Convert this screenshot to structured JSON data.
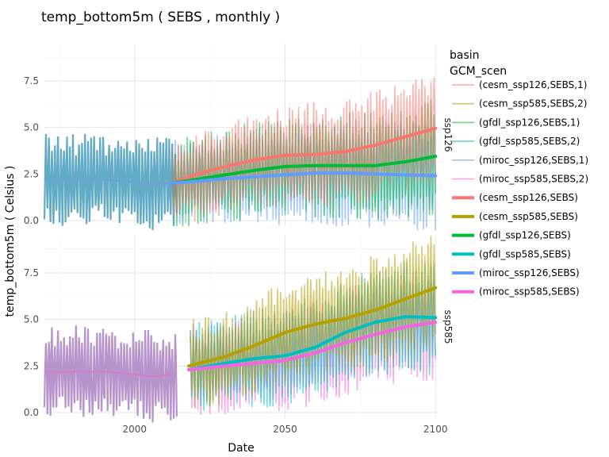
{
  "chart_data": {
    "type": "line",
    "title": "temp_bottom5m ( SEBS , monthly )",
    "xlabel": "Date",
    "ylabel": "temp_bottom5m ( Celsius )",
    "xlim": [
      1970,
      2101
    ],
    "ylim": [
      -0.3,
      9.5
    ],
    "x_ticks": [
      2000,
      2050,
      2100
    ],
    "y_ticks": [
      0.0,
      2.5,
      5.0,
      7.5
    ],
    "y_tick_labels": [
      "0.0",
      "2.5",
      "5.0",
      "7.5"
    ],
    "grid": true,
    "facets": [
      {
        "strip_label": "ssp126",
        "smooth_series": [
          {
            "name": "(cesm_ssp126,SEBS)",
            "color": "#F8766D",
            "x": [
              2012,
              2020,
              2030,
              2040,
              2050,
              2060,
              2070,
              2080,
              2090,
              2100
            ],
            "y": [
              2.0,
              2.45,
              2.9,
              3.25,
              3.5,
              3.55,
              3.7,
              4.05,
              4.5,
              4.95
            ]
          },
          {
            "name": "(gfdl_ssp126,SEBS)",
            "color": "#00BA38",
            "x": [
              2012,
              2020,
              2030,
              2040,
              2050,
              2060,
              2070,
              2080,
              2090,
              2100
            ],
            "y": [
              2.0,
              2.2,
              2.45,
              2.7,
              2.9,
              2.95,
              2.95,
              2.95,
              3.15,
              3.45
            ]
          },
          {
            "name": "(miroc_ssp126,SEBS)",
            "color": "#619CFF",
            "x": [
              2012,
              2020,
              2030,
              2040,
              2050,
              2060,
              2070,
              2080,
              2090,
              2100
            ],
            "y": [
              2.0,
              2.1,
              2.25,
              2.35,
              2.45,
              2.55,
              2.55,
              2.5,
              2.45,
              2.4
            ]
          }
        ]
      },
      {
        "strip_label": "ssp585",
        "smooth_series": [
          {
            "name": "(cesm_ssp585,SEBS)",
            "color": "#B79F00",
            "x": [
              2018,
              2030,
              2040,
              2050,
              2060,
              2070,
              2080,
              2090,
              2100
            ],
            "y": [
              2.5,
              3.0,
              3.6,
              4.3,
              4.75,
              5.05,
              5.5,
              6.1,
              6.7
            ]
          },
          {
            "name": "(gfdl_ssp585,SEBS)",
            "color": "#00BFC4",
            "x": [
              2018,
              2030,
              2040,
              2050,
              2060,
              2070,
              2080,
              2090,
              2100
            ],
            "y": [
              2.3,
              2.65,
              2.9,
              3.05,
              3.5,
              4.3,
              4.85,
              5.15,
              5.1
            ]
          },
          {
            "name": "(miroc_ssp585,SEBS)",
            "color": "#F564E3",
            "x": [
              2018,
              2030,
              2040,
              2050,
              2060,
              2070,
              2080,
              2090,
              2100
            ],
            "y": [
              2.3,
              2.5,
              2.65,
              2.8,
              3.2,
              3.75,
              4.2,
              4.6,
              4.85
            ]
          }
        ]
      }
    ],
    "historical_smooth": {
      "x": [
        1970,
        1980,
        1990,
        2000,
        2005,
        2012
      ],
      "y": [
        2.15,
        2.2,
        2.2,
        2.05,
        1.95,
        2.0
      ]
    },
    "legend": {
      "title_lines": [
        "basin",
        "GCM_scen"
      ],
      "position": "right",
      "entries": [
        {
          "label": "(cesm_ssp126,SEBS,1)",
          "color": "#F8766D",
          "style": "thin"
        },
        {
          "label": "(cesm_ssp585,SEBS,2)",
          "color": "#B79F00",
          "style": "thin"
        },
        {
          "label": "(gfdl_ssp126,SEBS,1)",
          "color": "#00BA38",
          "style": "thin"
        },
        {
          "label": "(gfdl_ssp585,SEBS,2)",
          "color": "#00BFC4",
          "style": "thin"
        },
        {
          "label": "(miroc_ssp126,SEBS,1)",
          "color": "#619CFF",
          "style": "thin"
        },
        {
          "label": "(miroc_ssp585,SEBS,2)",
          "color": "#F564E3",
          "style": "thin"
        },
        {
          "label": "(cesm_ssp126,SEBS)",
          "color": "#F8766D",
          "style": "thick"
        },
        {
          "label": "(cesm_ssp585,SEBS)",
          "color": "#B79F00",
          "style": "thick"
        },
        {
          "label": "(gfdl_ssp126,SEBS)",
          "color": "#00BA38",
          "style": "thick"
        },
        {
          "label": "(gfdl_ssp585,SEBS)",
          "color": "#00BFC4",
          "style": "thick"
        },
        {
          "label": "(miroc_ssp126,SEBS)",
          "color": "#619CFF",
          "style": "thick"
        },
        {
          "label": "(miroc_ssp585,SEBS)",
          "color": "#F564E3",
          "style": "thick"
        }
      ]
    }
  }
}
